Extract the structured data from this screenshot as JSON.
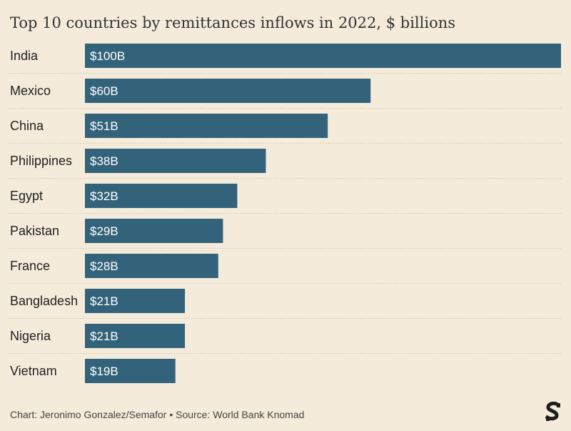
{
  "chart_data": {
    "type": "bar",
    "orientation": "horizontal",
    "title": "Top 10 countries by remittances inflows in 2022, $ billions",
    "categories": [
      "India",
      "Mexico",
      "China",
      "Philippines",
      "Egypt",
      "Pakistan",
      "France",
      "Bangladesh",
      "Nigeria",
      "Vietnam"
    ],
    "values": [
      100,
      60,
      51,
      38,
      32,
      29,
      28,
      21,
      21,
      19
    ],
    "data_labels": [
      "$100B",
      "$60B",
      "$51B",
      "$38B",
      "$32B",
      "$29B",
      "$28B",
      "$21B",
      "$21B",
      "$19B"
    ],
    "xlim": [
      0,
      100
    ],
    "grid": false,
    "colors": {
      "bar": "#33637A",
      "background": "#F4EBDA",
      "separator": "#C9BFAE"
    }
  },
  "footer": {
    "credit": "Chart: Jeronimo Gonzalez/Semafor • Source: World Bank Knomad"
  },
  "logo": {
    "icon": "semafor-logo-icon"
  }
}
